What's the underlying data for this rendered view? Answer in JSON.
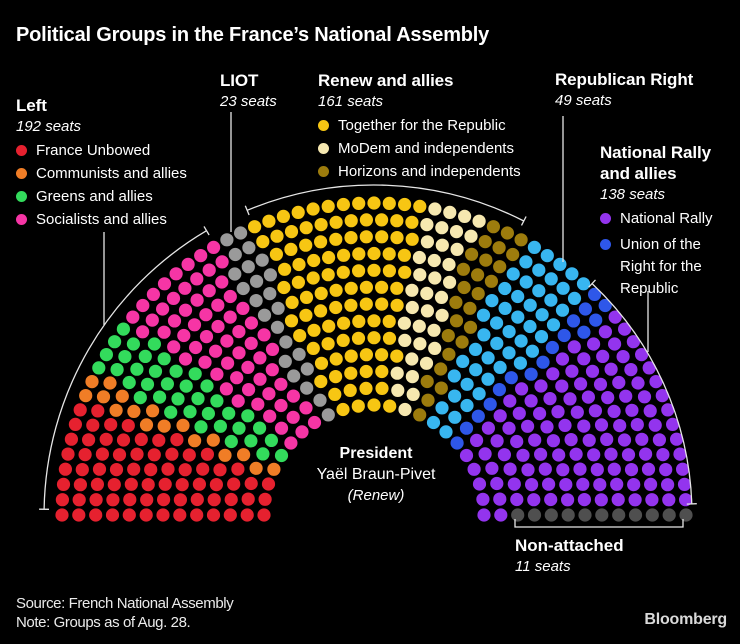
{
  "title": "Political Groups in the France’s National Assembly",
  "legend": {
    "left": {
      "title": "Left",
      "seats_label": "192 seats",
      "items": [
        {
          "label": "France Unbowed",
          "color": "#e6212f"
        },
        {
          "label": "Communists and allies",
          "color": "#f07d26"
        },
        {
          "label": "Greens and allies",
          "color": "#33db5c"
        },
        {
          "label": "Socialists and allies",
          "color": "#f635a5"
        }
      ]
    },
    "liot": {
      "title": "LIOT",
      "seats_label": "23 seats"
    },
    "renew": {
      "title": "Renew and allies",
      "seats_label": "161 seats",
      "items": [
        {
          "label": "Together for the Republic",
          "color": "#f7c613"
        },
        {
          "label": "MoDem and independents",
          "color": "#f6e8b0"
        },
        {
          "label": "Horizons and independents",
          "color": "#9d7c0d"
        }
      ]
    },
    "republican_right": {
      "title": "Republican Right",
      "seats_label": "49 seats"
    },
    "national_rally": {
      "title": "National Rally and allies",
      "seats_label": "138 seats",
      "items": [
        {
          "label": "National Rally",
          "color": "#9334ee"
        },
        {
          "label": "Union of the Right for the Republic",
          "color": "#2e57e9"
        }
      ]
    },
    "non_attached": {
      "title": "Non-attached",
      "seats_label": "11 seats"
    }
  },
  "president": {
    "label": "President",
    "name": "Yaël Braun-Pivet",
    "group": "(Renew)"
  },
  "footer": {
    "source": "Source: French National Assembly",
    "note": "Note: Groups as of Aug. 28.",
    "brand": "Bloomberg"
  },
  "colors": {
    "background": "#000000",
    "text": "#ffffff",
    "annotation_line": "#e6e6e6"
  },
  "chart_data": {
    "type": "parliament",
    "title": "Political Groups in the France’s National Assembly",
    "total_seats": 574,
    "legend_position": "around hemicycle",
    "groups": [
      {
        "name": "Left",
        "seats": 192
      },
      {
        "name": "LIOT",
        "seats": 23
      },
      {
        "name": "Renew and allies",
        "seats": 161
      },
      {
        "name": "Republican Right",
        "seats": 49
      },
      {
        "name": "National Rally and allies",
        "seats": 138
      },
      {
        "name": "Non-attached",
        "seats": 11
      }
    ],
    "fill_order": [
      {
        "party": "France Unbowed",
        "group": "Left",
        "seats": 72,
        "color": "#e6212f"
      },
      {
        "party": "Communists and allies",
        "group": "Left",
        "seats": 17,
        "color": "#f07d26"
      },
      {
        "party": "Greens and allies",
        "group": "Left",
        "seats": 38,
        "color": "#33db5c"
      },
      {
        "party": "Socialists and allies",
        "group": "Left",
        "seats": 65,
        "color": "#f635a5"
      },
      {
        "party": "LIOT",
        "group": "LIOT",
        "seats": 23,
        "color": "#9a9a9a"
      },
      {
        "party": "Together for the Republic",
        "group": "Renew and allies",
        "seats": 99,
        "color": "#f7c613"
      },
      {
        "party": "MoDem and independents",
        "group": "Renew and allies",
        "seats": 36,
        "color": "#f6e8b0"
      },
      {
        "party": "Horizons and independents",
        "group": "Renew and allies",
        "seats": 26,
        "color": "#9d7c0d"
      },
      {
        "party": "Republican Right",
        "group": "Republican Right",
        "seats": 49,
        "color": "#38b6f0"
      },
      {
        "party": "Union of the Right for the Republic",
        "group": "National Rally and allies",
        "seats": 16,
        "color": "#2e57e9"
      },
      {
        "party": "National Rally",
        "group": "National Rally and allies",
        "seats": 122,
        "color": "#9334ee"
      },
      {
        "party": "Non-attached",
        "group": "Non-attached",
        "seats": 11,
        "color": "#4f4f4f"
      }
    ]
  }
}
